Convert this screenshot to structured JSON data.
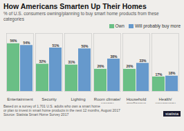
{
  "chart_data": {
    "type": "bar",
    "title": "How Americans Smarten Up Their Homes",
    "subtitle": "% of U.S. consumers owning/planning to buy smart home products from these categories",
    "categories": [
      "Entertainment",
      "Security",
      "Lighting",
      "Room climate/\nenergy",
      "Household\nappliances",
      "Health/\nemergency"
    ],
    "series": [
      {
        "name": "Own",
        "color": "#6abf85",
        "values": [
          56,
          32,
          31,
          26,
          26,
          17
        ],
        "value_labels": [
          "56%",
          "32%",
          "31%",
          "26%",
          "26%",
          "17%"
        ]
      },
      {
        "name": "Will probably buy more",
        "color": "#6699cc",
        "values": [
          54,
          51,
          50,
          38,
          33,
          18
        ],
        "value_labels": [
          "54%",
          "51%",
          "50%",
          "38%",
          "33%",
          "18%"
        ]
      }
    ],
    "ylim": [
      0,
      68
    ],
    "data_labels": true,
    "tick_labels": "x",
    "legend": "upper right",
    "annotations": [
      "statista",
      "Based on a survey of 1,701 U.S. adults who own a smart home\nor plan to invest in smart home products in the next 12 months, August 2017",
      "Source: Statista Smart Home Survey 2017"
    ]
  }
}
